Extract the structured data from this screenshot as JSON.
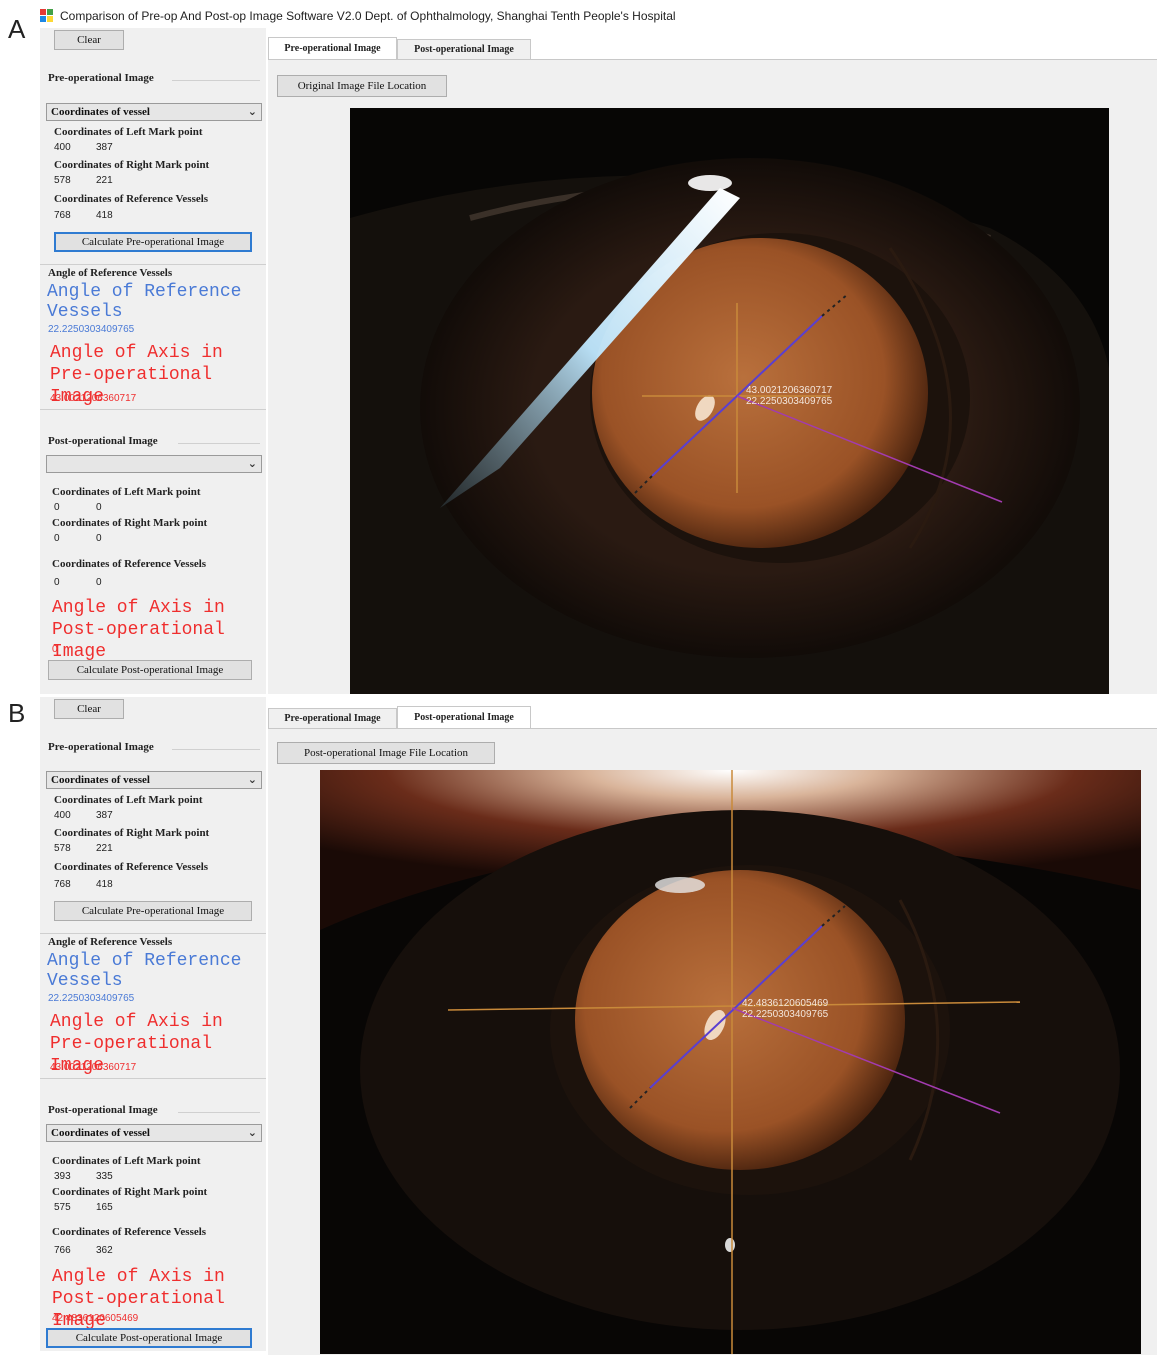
{
  "window_title": "Comparison of Pre-op And Post-op Image Software V2.0   Dept. of Ophthalmology, Shanghai Tenth People's Hospital",
  "panels": [
    {
      "letter": "A",
      "clear_label": "Clear",
      "pre_group": "Pre-operational Image",
      "pre_combo": "Coordinates of vessel",
      "pre_left_label": "Coordinates of Left Mark point",
      "pre_left_x": "400",
      "pre_left_y": "387",
      "pre_right_label": "Coordinates of Right Mark point",
      "pre_right_x": "578",
      "pre_right_y": "221",
      "pre_ref_label": "Coordinates of Reference Vessels",
      "pre_ref_x": "768",
      "pre_ref_y": "418",
      "calc_pre_label": "Calculate Pre-operational Image",
      "angle_ref_small": "Angle of Reference Vessels",
      "angle_ref_big": "Angle of Reference Vessels",
      "angle_ref_value": "22.2250303409765",
      "angle_pre_big": "Angle of Axis in Pre-operational Image",
      "angle_pre_value": "43.0021206360717",
      "post_group": "Post-operational Image",
      "post_combo": "",
      "post_left_label": "Coordinates of Left Mark point",
      "post_left_x": "0",
      "post_left_y": "0",
      "post_right_label": "Coordinates of Right Mark point",
      "post_right_x": "0",
      "post_right_y": "0",
      "post_ref_label": "Coordinates of Reference Vessels",
      "post_ref_x": "0",
      "post_ref_y": "0",
      "angle_post_big": "Angle of Axis in Post-operational Image",
      "angle_post_value": "0",
      "calc_post_label": "Calculate Post-operational Image",
      "tabs": [
        "Pre-operational Image",
        "Post-operational Image"
      ],
      "active_tab": 0,
      "file_button": "Original Image File Location",
      "overlay_line1": "43.0021206360717",
      "overlay_line2": "22.2250303409765"
    },
    {
      "letter": "B",
      "clear_label": "Clear",
      "pre_group": "Pre-operational Image",
      "pre_combo": "Coordinates of vessel",
      "pre_left_label": "Coordinates of Left Mark point",
      "pre_left_x": "400",
      "pre_left_y": "387",
      "pre_right_label": "Coordinates of Right Mark point",
      "pre_right_x": "578",
      "pre_right_y": "221",
      "pre_ref_label": "Coordinates of Reference Vessels",
      "pre_ref_x": "768",
      "pre_ref_y": "418",
      "calc_pre_label": "Calculate Pre-operational Image",
      "angle_ref_small": "Angle of Reference Vessels",
      "angle_ref_big": "Angle of Reference Vessels",
      "angle_ref_value": "22.2250303409765",
      "angle_pre_big": "Angle of Axis in Pre-operational Image",
      "angle_pre_value": "43.0021206360717",
      "post_group": "Post-operational Image",
      "post_combo": "Coordinates of vessel",
      "post_left_label": "Coordinates of Left Mark point",
      "post_left_x": "393",
      "post_left_y": "335",
      "post_right_label": "Coordinates of Right Mark point",
      "post_right_x": "575",
      "post_right_y": "165",
      "post_ref_label": "Coordinates of Reference Vessels",
      "post_ref_x": "766",
      "post_ref_y": "362",
      "angle_post_big": "Angle of Axis in Post-operational Image",
      "angle_post_value": "42.4836120605469",
      "calc_post_label": "Calculate Post-operational Image",
      "tabs": [
        "Pre-operational Image",
        "Post-operational Image"
      ],
      "active_tab": 1,
      "file_button": "Post-operational Image File Location",
      "overlay_line1": "42.4836120605469",
      "overlay_line2": "22.2250303409765"
    }
  ],
  "colors": {
    "accent_blue": "#4a7ad6",
    "accent_red": "#ef2e2e",
    "axis_line": "#5a3fd0",
    "ref_line": "#a23bb0",
    "crosshair": "#c98a3a",
    "pupil": "#a85a2c",
    "focus_border": "#2f7bd1"
  },
  "icons": [
    "app-icon",
    "chevron-down-icon"
  ]
}
